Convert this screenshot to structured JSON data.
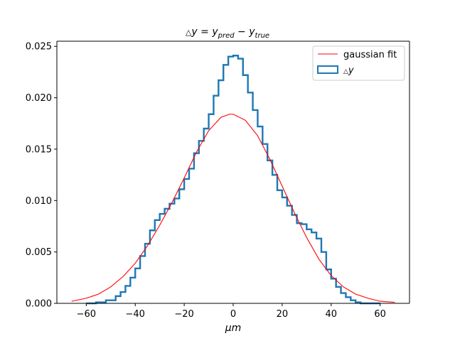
{
  "chart_data": {
    "type": "histogram+line",
    "title": "△y = y_pred − y_true",
    "title_parts": {
      "delta": "△",
      "y": "y",
      "eq": " = ",
      "y2": "y",
      "pred": "pred",
      "minus": " − ",
      "y3": "y",
      "true": "true"
    },
    "xlabel": "μm",
    "xlabel_parts": {
      "mu": "μ",
      "m": "m"
    },
    "ylabel": "",
    "xlim": [
      -72,
      72
    ],
    "ylim": [
      0,
      0.0255
    ],
    "xticks": [
      -60,
      -40,
      -20,
      0,
      20,
      40,
      60
    ],
    "xtick_labels": [
      "−60",
      "−40",
      "−20",
      "0",
      "20",
      "40",
      "60"
    ],
    "yticks": [
      0,
      0.005,
      0.01,
      0.015,
      0.02,
      0.025
    ],
    "ytick_labels": [
      "0.000",
      "0.005",
      "0.010",
      "0.015",
      "0.020",
      "0.025"
    ],
    "legend": {
      "position": "top-right",
      "entries": [
        {
          "label": "gaussian fit",
          "kind": "line",
          "color": "#ff0000"
        },
        {
          "label_prefix": "△",
          "label": "y",
          "kind": "step-histogram",
          "color": "#1f77b4"
        }
      ]
    },
    "series": [
      {
        "name": "gaussian fit",
        "style": "line",
        "color": "#ff0000",
        "x": [
          -66,
          -60,
          -55,
          -50,
          -45,
          -40,
          -35,
          -30,
          -25,
          -20,
          -15,
          -10,
          -5,
          -1.5,
          0,
          5,
          10,
          15,
          20,
          25,
          30,
          35,
          40,
          45,
          50,
          55,
          60,
          66
        ],
        "y": [
          0.0002,
          0.0005,
          0.0009,
          0.0016,
          0.0026,
          0.0039,
          0.0056,
          0.0076,
          0.0098,
          0.0122,
          0.0147,
          0.0168,
          0.0181,
          0.0184,
          0.0184,
          0.0178,
          0.0163,
          0.014,
          0.0114,
          0.0088,
          0.0064,
          0.0043,
          0.0027,
          0.0016,
          0.0009,
          0.0005,
          0.0002,
          0.0001
        ]
      },
      {
        "name": "△y",
        "style": "step",
        "color": "#1f77b4",
        "x": [
          -60,
          -56,
          -52,
          -48,
          -46,
          -44,
          -42,
          -40,
          -38,
          -36,
          -34,
          -32,
          -30,
          -28,
          -26,
          -24,
          -22,
          -20,
          -18,
          -16,
          -14,
          -12,
          -10,
          -8,
          -6,
          -4,
          -2,
          0,
          2,
          4,
          6,
          8,
          10,
          12,
          14,
          16,
          18,
          20,
          22,
          24,
          26,
          28,
          30,
          32,
          34,
          36,
          38,
          40,
          42,
          44,
          46,
          48,
          50,
          52,
          54,
          56,
          58,
          60
        ],
        "y": [
          0.0,
          0.0001,
          0.0003,
          0.0007,
          0.0011,
          0.0017,
          0.0025,
          0.0034,
          0.0046,
          0.0058,
          0.0071,
          0.0081,
          0.0087,
          0.0092,
          0.0097,
          0.0102,
          0.0111,
          0.0121,
          0.0131,
          0.0146,
          0.0158,
          0.017,
          0.0184,
          0.0202,
          0.0217,
          0.0232,
          0.024,
          0.0241,
          0.0238,
          0.0222,
          0.0205,
          0.0188,
          0.0172,
          0.0155,
          0.0139,
          0.0125,
          0.011,
          0.0103,
          0.0095,
          0.0086,
          0.0078,
          0.0077,
          0.0072,
          0.0069,
          0.0063,
          0.005,
          0.0033,
          0.0024,
          0.0016,
          0.001,
          0.0006,
          0.0003,
          0.0001,
          0.0,
          0.0,
          0.0,
          0.0,
          0.0
        ]
      }
    ]
  }
}
